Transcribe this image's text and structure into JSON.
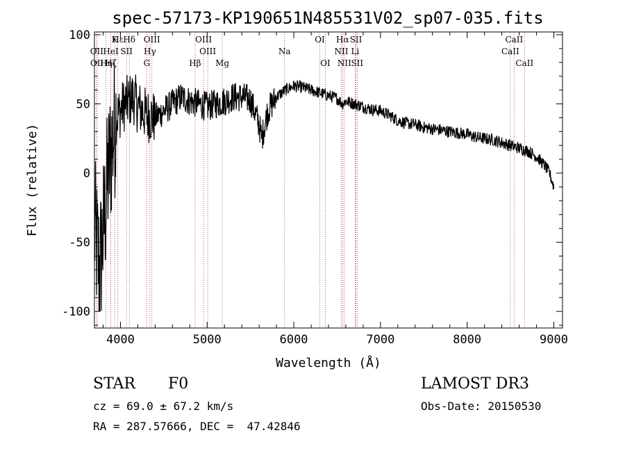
{
  "chart_data": {
    "type": "line",
    "title": "spec-57173-KP190651N485531V02_sp07-035.fits",
    "xlabel": "Wavelength (Å)",
    "ylabel": "Flux (relative)",
    "xlim": [
      3700,
      9100
    ],
    "ylim": [
      -112,
      102
    ],
    "xticks": [
      4000,
      5000,
      6000,
      7000,
      8000,
      9000
    ],
    "yticks": [
      -100,
      -50,
      0,
      50,
      100
    ],
    "series": [
      {
        "name": "spectrum",
        "x": [
          3700,
          3760,
          3820,
          3860,
          3900,
          3950,
          4000,
          4050,
          4100,
          4150,
          4200,
          4300,
          4400,
          4500,
          4600,
          4700,
          4800,
          4900,
          5000,
          5100,
          5200,
          5300,
          5400,
          5500,
          5600,
          5630,
          5700,
          5800,
          5900,
          6000,
          6100,
          6200,
          6300,
          6400,
          6500,
          6560,
          6600,
          6700,
          6800,
          6900,
          7000,
          7100,
          7200,
          7300,
          7400,
          7500,
          7600,
          7700,
          7800,
          7900,
          8000,
          8100,
          8200,
          8300,
          8400,
          8500,
          8600,
          8700,
          8800,
          8900,
          8950,
          9000
        ],
        "y": [
          -40,
          -70,
          -30,
          0,
          20,
          40,
          45,
          50,
          52,
          55,
          48,
          42,
          40,
          45,
          50,
          55,
          52,
          50,
          48,
          50,
          52,
          55,
          55,
          53,
          35,
          25,
          45,
          55,
          60,
          63,
          62,
          60,
          58,
          56,
          54,
          50,
          52,
          50,
          48,
          46,
          45,
          42,
          38,
          36,
          35,
          33,
          32,
          31,
          30,
          29,
          28,
          26,
          25,
          24,
          22,
          20,
          18,
          16,
          12,
          5,
          0,
          -10
        ]
      }
    ],
    "emission_lines": [
      {
        "label": "Hδ",
        "x": 4102,
        "row": 1
      },
      {
        "label": "K",
        "x": 3934,
        "row": 1
      },
      {
        "label": "Hε",
        "x": 3970,
        "row": 1
      },
      {
        "label": "OIII",
        "x": 4363,
        "row": 1
      },
      {
        "label": "OIII",
        "x": 4959,
        "row": 1
      },
      {
        "label": "OI",
        "x": 6300,
        "row": 1
      },
      {
        "label": "Hα",
        "x": 6563,
        "row": 1
      },
      {
        "label": "SII",
        "x": 6717,
        "row": 1
      },
      {
        "label": "CaII",
        "x": 8542,
        "row": 1
      },
      {
        "label": "OII",
        "x": 3727,
        "row": 2
      },
      {
        "label": "HeI",
        "x": 3889,
        "row": 2
      },
      {
        "label": "SII",
        "x": 4070,
        "row": 2
      },
      {
        "label": "Hγ",
        "x": 4340,
        "row": 2
      },
      {
        "label": "OIII",
        "x": 5007,
        "row": 2
      },
      {
        "label": "Na",
        "x": 5893,
        "row": 2
      },
      {
        "label": "NII",
        "x": 6548,
        "row": 2
      },
      {
        "label": "Li",
        "x": 6708,
        "row": 2
      },
      {
        "label": "CaII",
        "x": 8498,
        "row": 2
      },
      {
        "label": "OII",
        "x": 3729,
        "row": 3
      },
      {
        "label": "Hη",
        "x": 3835,
        "row": 3
      },
      {
        "label": "Hζ",
        "x": 3889,
        "row": 3
      },
      {
        "label": "G",
        "x": 4304,
        "row": 3
      },
      {
        "label": "Hβ",
        "x": 4861,
        "row": 3
      },
      {
        "label": "Mg",
        "x": 5175,
        "row": 3
      },
      {
        "label": "OI",
        "x": 6364,
        "row": 3
      },
      {
        "label": "NII",
        "x": 6583,
        "row": 3
      },
      {
        "label": "SII",
        "x": 6731,
        "row": 3
      },
      {
        "label": "CaII",
        "x": 8662,
        "row": 3
      }
    ]
  },
  "info": {
    "class": "STAR",
    "subclass": "F0",
    "survey": "LAMOST DR3",
    "cz": "cz = 69.0 ± 67.2 km/s",
    "obs_date": "Obs-Date: 20150530",
    "radec": "RA = 287.57666, DEC =  47.42846"
  }
}
